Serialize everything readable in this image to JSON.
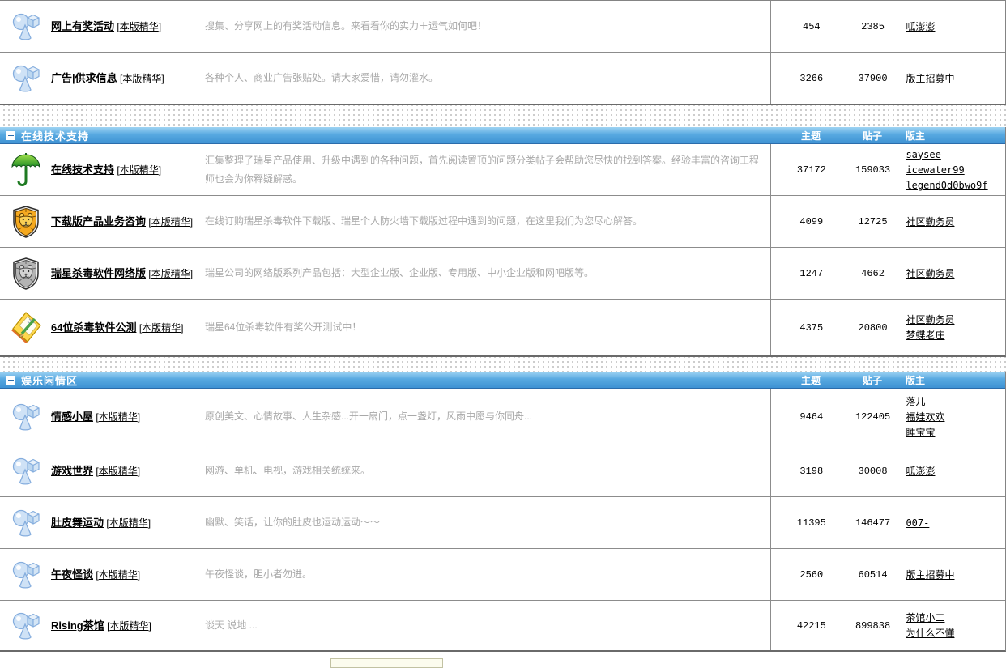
{
  "columns": {
    "topics": "主题",
    "posts": "贴子",
    "moderator": "版主"
  },
  "essence": {
    "open": "[",
    "label": "本版精华",
    "close": "]"
  },
  "sections": [
    {
      "rows": [
        {
          "icon": "shapes-blue-icon",
          "name": "网上有奖活动",
          "desc": "搜集、分享网上的有奖活动信息。来看看你的实力＋运气如何吧！",
          "topics": "454",
          "posts": "2385",
          "mods": [
            "呱澎澎"
          ]
        },
        {
          "icon": "shapes-blue-icon",
          "name": "广告|供求信息",
          "desc": "各种个人、商业广告张贴处。请大家爱惜，请勿灌水。",
          "topics": "3266",
          "posts": "37900",
          "mods": [
            "版主招募中"
          ]
        }
      ]
    },
    {
      "title": "在线技术支持",
      "rows": [
        {
          "icon": "umbrella-icon",
          "name": "在线技术支持",
          "desc": "汇集整理了瑞星产品使用、升级中遇到的各种问题，首先阅读置顶的问题分类帖子会帮助您尽快的找到答案。经验丰富的咨询工程师也会为你释疑解惑。",
          "topics": "37172",
          "posts": "159033",
          "mods": [
            "saysee",
            "icewater99",
            "legend0d0bwo9f"
          ]
        },
        {
          "icon": "lion-shield-orange-icon",
          "name": "下载版产品业务咨询",
          "desc": "在线订购瑞星杀毒软件下载版、瑞星个人防火墙下载版过程中遇到的问题，在这里我们为您尽心解答。",
          "topics": "4099",
          "posts": "12725",
          "mods": [
            "社区勤务员"
          ]
        },
        {
          "icon": "lion-shield-gray-icon",
          "name": "瑞星杀毒软件网络版",
          "desc": "瑞星公司的网络版系列产品包括：大型企业版、企业版、专用版、中小企业版和网吧版等。",
          "topics": "1247",
          "posts": "4662",
          "mods": [
            "社区勤务员"
          ]
        },
        {
          "icon": "notepad-pencil-icon",
          "name": "64位杀毒软件公测",
          "desc": "瑞星64位杀毒软件有奖公开测试中！",
          "topics": "4375",
          "posts": "20800",
          "mods": [
            "社区勤务员",
            "梦蝶老庄"
          ]
        }
      ]
    },
    {
      "title": "娱乐闲情区",
      "rows": [
        {
          "icon": "shapes-blue-icon",
          "name": "情感小屋",
          "desc": "原创美文、心情故事、人生杂感...开一扇门，点一盏灯，风雨中愿与你同舟...",
          "topics": "9464",
          "posts": "122405",
          "mods": [
            "落儿",
            "福娃欢欢",
            "睡宝宝"
          ]
        },
        {
          "icon": "shapes-blue-icon",
          "name": "游戏世界",
          "desc": "网游、单机、电视，游戏相关统统来。",
          "topics": "3198",
          "posts": "30008",
          "mods": [
            "呱澎澎"
          ]
        },
        {
          "icon": "shapes-blue-icon",
          "name": "肚皮舞运动",
          "desc": "幽默、笑话，让你的肚皮也运动运动～～",
          "topics": "11395",
          "posts": "146477",
          "mods": [
            "007-"
          ]
        },
        {
          "icon": "shapes-blue-icon",
          "name": "午夜怪谈",
          "desc": "午夜怪谈，胆小者勿进。",
          "topics": "2560",
          "posts": "60514",
          "mods": [
            "版主招募中"
          ]
        },
        {
          "icon": "shapes-blue-icon",
          "name": "Rising茶馆",
          "desc": "谈天 说地 ...",
          "topics": "42215",
          "posts": "899838",
          "mods": [
            "茶馆小二",
            "为什么不懂"
          ]
        }
      ]
    }
  ]
}
